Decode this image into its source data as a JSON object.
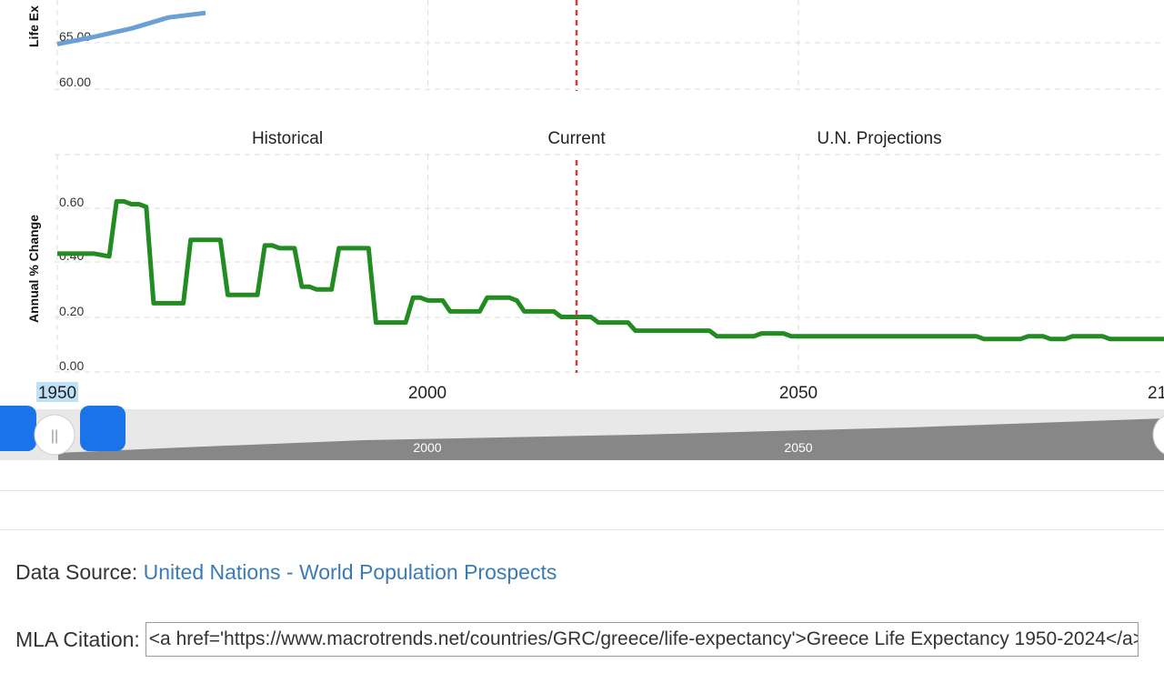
{
  "chart_data": [
    {
      "type": "line",
      "ylabel": "Life Ex",
      "y_ticks": [
        "60.00",
        "65.00"
      ],
      "ylim": [
        60,
        70
      ],
      "color": "#6aa0d6",
      "x": [
        1950,
        1955,
        1960,
        1965,
        1970
      ],
      "values": [
        64.9,
        65.7,
        66.6,
        67.8,
        68.3
      ]
    },
    {
      "type": "line",
      "ylabel": "Annual % Change",
      "y_ticks": [
        "0.00",
        "0.20",
        "0.40",
        "0.60"
      ],
      "ylim": [
        0,
        0.7
      ],
      "color": "#228b22",
      "period_labels": [
        "Historical",
        "Current",
        "U.N. Projections"
      ],
      "current_year": 2020,
      "x_ticks": [
        "1950",
        "2000",
        "2050",
        "21"
      ],
      "x": [
        1951,
        1955,
        1957,
        1958,
        1959,
        1960,
        1961,
        1962,
        1963,
        1964,
        1965,
        1966,
        1967,
        1968,
        1969,
        1970,
        1971,
        1972,
        1973,
        1974,
        1975,
        1976,
        1977,
        1978,
        1979,
        1980,
        1981,
        1982,
        1983,
        1984,
        1985,
        1986,
        1987,
        1988,
        1989,
        1990,
        1991,
        1992,
        1993,
        1994,
        1995,
        1996,
        1997,
        1998,
        1999,
        2000,
        2001,
        2002,
        2003,
        2004,
        2005,
        2006,
        2007,
        2008,
        2009,
        2010,
        2011,
        2012,
        2013,
        2014,
        2015,
        2016,
        2017,
        2018,
        2019,
        2020,
        2021,
        2022,
        2023,
        2024,
        2025,
        2026,
        2027,
        2028,
        2029,
        2030,
        2035,
        2038,
        2039,
        2044,
        2045,
        2048,
        2049,
        2074,
        2075,
        2080,
        2081,
        2083,
        2084,
        2086,
        2087,
        2091,
        2092,
        2100
      ],
      "values": [
        0.43,
        0.43,
        0.42,
        0.62,
        0.62,
        0.61,
        0.61,
        0.6,
        0.25,
        0.25,
        0.25,
        0.25,
        0.25,
        0.48,
        0.48,
        0.48,
        0.48,
        0.48,
        0.28,
        0.28,
        0.28,
        0.28,
        0.28,
        0.46,
        0.46,
        0.45,
        0.45,
        0.45,
        0.31,
        0.31,
        0.3,
        0.3,
        0.3,
        0.45,
        0.45,
        0.45,
        0.45,
        0.45,
        0.18,
        0.18,
        0.18,
        0.18,
        0.18,
        0.27,
        0.27,
        0.26,
        0.26,
        0.26,
        0.22,
        0.22,
        0.22,
        0.22,
        0.22,
        0.27,
        0.27,
        0.27,
        0.27,
        0.26,
        0.22,
        0.22,
        0.22,
        0.22,
        0.22,
        0.2,
        0.2,
        0.2,
        0.2,
        0.2,
        0.18,
        0.18,
        0.18,
        0.18,
        0.18,
        0.15,
        0.15,
        0.15,
        0.15,
        0.15,
        0.13,
        0.13,
        0.14,
        0.14,
        0.13,
        0.13,
        0.12,
        0.12,
        0.13,
        0.13,
        0.12,
        0.12,
        0.13,
        0.13,
        0.12,
        0.12
      ]
    }
  ],
  "navigator": {
    "tick_labels": [
      "2000",
      "2050"
    ],
    "window_start_year": 1950,
    "handle_glyph": "||"
  },
  "footer": {
    "source_label": "Data Source:",
    "source_link": "United Nations - World Population Prospects",
    "citation_label": "MLA Citation:",
    "citation_value": "<a href='https://www.macrotrends.net/countries/GRC/greece/life-expectancy'>Greece Life Expectancy 1950-2024</a>"
  }
}
